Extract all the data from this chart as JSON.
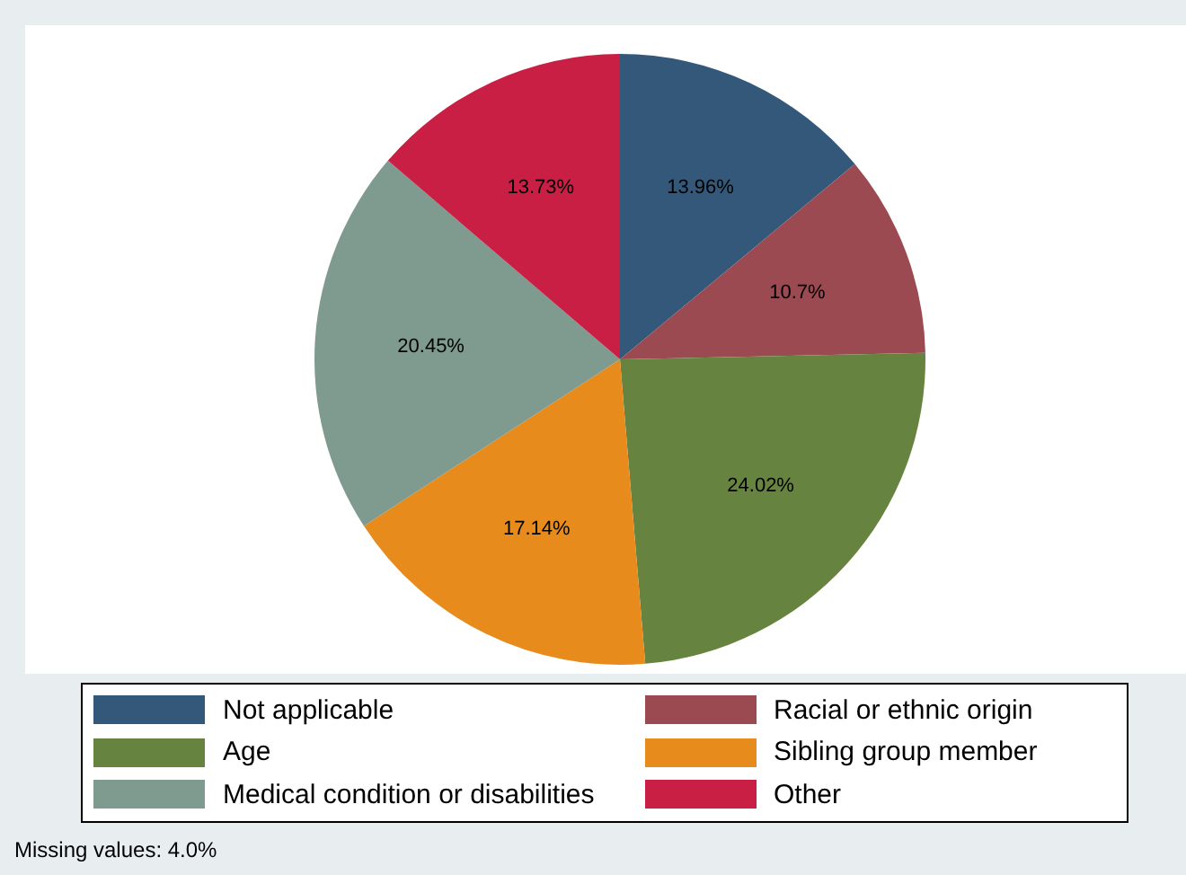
{
  "chart_data": {
    "type": "pie",
    "categories": [
      "Not applicable",
      "Racial or ethnic origin",
      "Age",
      "Sibling group member",
      "Medical condition or disabilities",
      "Other"
    ],
    "values": [
      13.96,
      10.7,
      24.02,
      17.14,
      20.45,
      13.73
    ],
    "colors": [
      "#33587a",
      "#9b4a52",
      "#668340",
      "#e68b1c",
      "#7f9a8f",
      "#c91f45"
    ],
    "value_labels": [
      "13.96%",
      "10.7%",
      "24.02%",
      "17.14%",
      "20.45%",
      "13.73%"
    ],
    "legend": "bottom",
    "annotations": [
      "Missing values: 4.0%"
    ]
  }
}
